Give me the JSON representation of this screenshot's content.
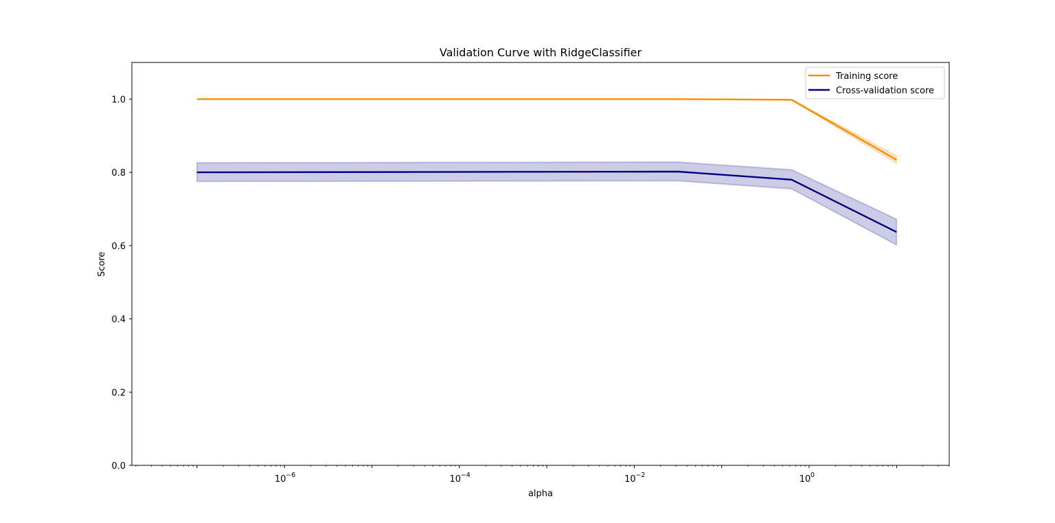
{
  "chart_data": {
    "type": "line",
    "title": "Validation Curve with RidgeClassifier",
    "xlabel": "alpha",
    "ylabel": "Score",
    "xscale": "log",
    "xlim": [
      1.8e-08,
      40
    ],
    "ylim": [
      0,
      1.1
    ],
    "grid": false,
    "legend_position": "top-right",
    "x": [
      1e-07,
      0.0316,
      0.631,
      10
    ],
    "xtick_labels": [
      {
        "base": "10",
        "exp": "−6",
        "value": 1e-06
      },
      {
        "base": "10",
        "exp": "−4",
        "value": 0.0001
      },
      {
        "base": "10",
        "exp": "−2",
        "value": 0.01
      },
      {
        "base": "10",
        "exp": "0",
        "value": 1
      }
    ],
    "ytick_labels": [
      "0.0",
      "0.2",
      "0.4",
      "0.6",
      "0.8",
      "1.0"
    ],
    "yticks": [
      0.0,
      0.2,
      0.4,
      0.6,
      0.8,
      1.0
    ],
    "series": [
      {
        "name": "Training score",
        "color": "#ff8c00",
        "values": [
          1.0,
          1.0,
          0.998,
          0.834
        ],
        "band_lower": [
          1.0,
          1.0,
          0.997,
          0.824
        ],
        "band_upper": [
          1.0,
          1.0,
          0.999,
          0.845
        ]
      },
      {
        "name": "Cross-validation score",
        "color": "#000080",
        "values": [
          0.8,
          0.802,
          0.78,
          0.637
        ],
        "band_lower": [
          0.775,
          0.777,
          0.755,
          0.602
        ],
        "band_upper": [
          0.826,
          0.828,
          0.807,
          0.672
        ]
      }
    ]
  }
}
